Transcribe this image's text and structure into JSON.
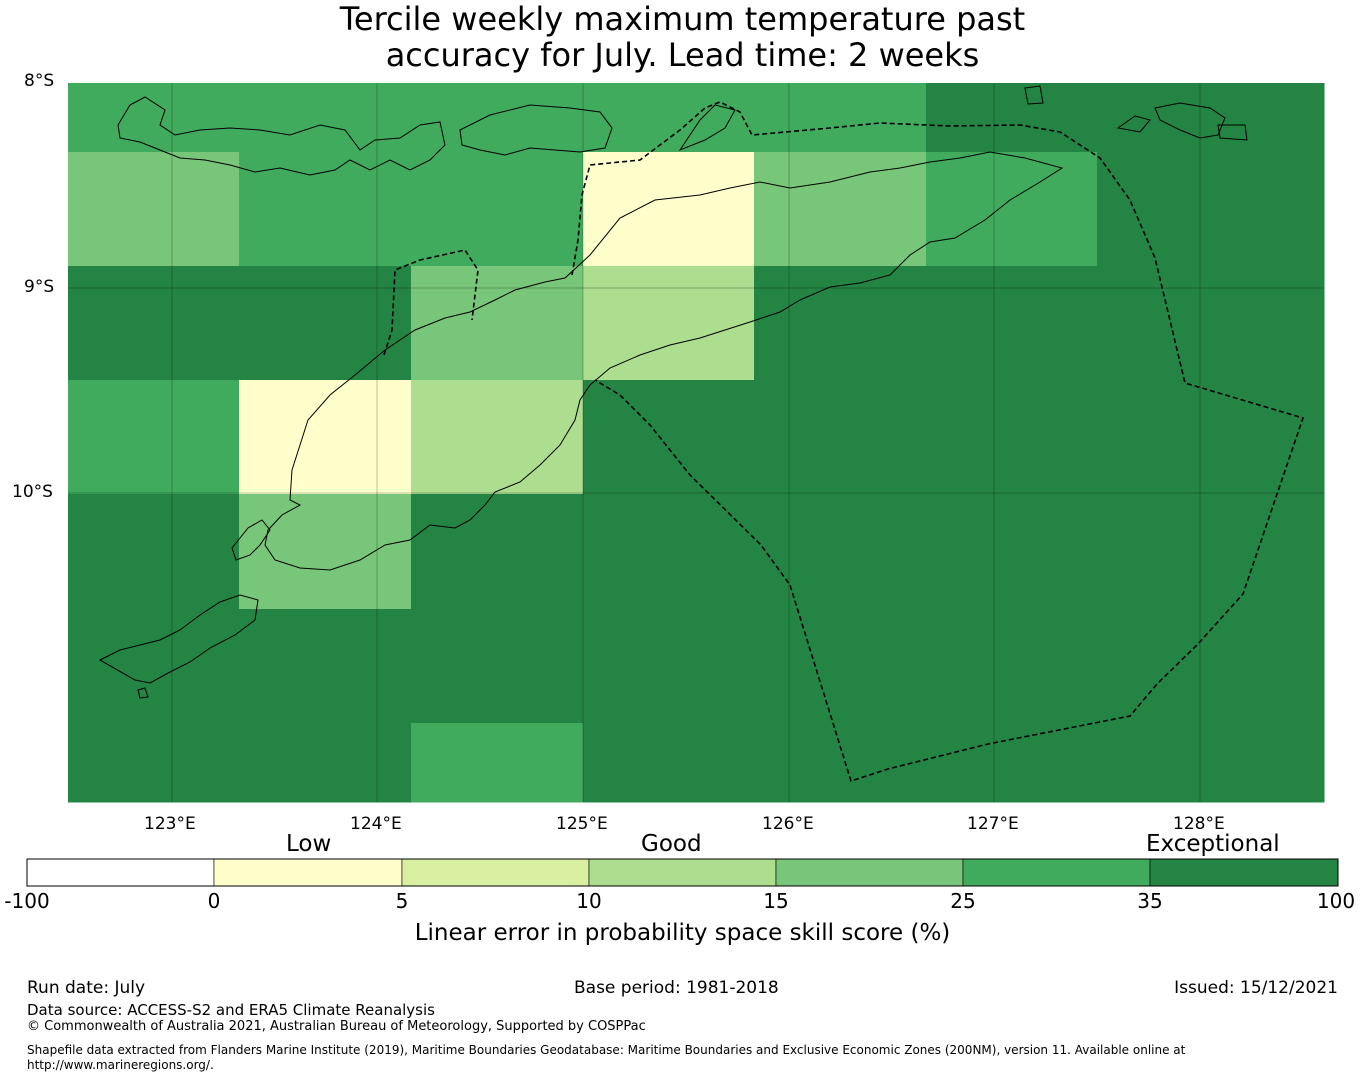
{
  "title_line1": "Tercile weekly maximum temperature past",
  "title_line2": "accuracy for July. Lead time: 2 weeks",
  "lat_labels": [
    "8°S",
    "9°S",
    "10°S"
  ],
  "lon_labels": [
    "123°E",
    "124°E",
    "125°E",
    "126°E",
    "127°E",
    "128°E"
  ],
  "colorbar": {
    "categories": [
      "Low",
      "Good",
      "Exceptional"
    ],
    "ticks": [
      "-100",
      "0",
      "5",
      "10",
      "15",
      "25",
      "35",
      "100"
    ],
    "colors": [
      "#ffffff",
      "#ffffcc",
      "#d9f0a3",
      "#addd8e",
      "#78c679",
      "#41ab5d",
      "#238443"
    ],
    "label": "Linear error in probability space skill score (%)"
  },
  "grid_cells": [
    [
      "#41ab5d",
      "#41ab5d",
      "#41ab5d",
      "#41ab5d",
      "#41ab5d",
      "#238443",
      "#238443"
    ],
    [
      "#78c679",
      "#41ab5d",
      "#41ab5d",
      "#ffffcc",
      "#78c679",
      "#41ab5d",
      "#238443"
    ],
    [
      "#238443",
      "#238443",
      "#78c679",
      "#addd8e",
      "#238443",
      "#238443",
      "#238443"
    ],
    [
      "#41ab5d",
      "#ffffcc",
      "#addd8e",
      "#238443",
      "#238443",
      "#238443",
      "#238443"
    ],
    [
      "#238443",
      "#78c679",
      "#238443",
      "#238443",
      "#238443",
      "#238443",
      "#238443"
    ],
    [
      "#238443",
      "#238443",
      "#238443",
      "#238443",
      "#238443",
      "#238443",
      "#238443"
    ],
    [
      "#238443",
      "#238443",
      "#41ab5d",
      "#238443",
      "#238443",
      "#238443",
      "#238443"
    ]
  ],
  "footer": {
    "run_date": "Run date: July",
    "base_period": "Base period: 1981-2018",
    "issued": "Issued: 15/12/2021",
    "data_source": "Data source: ACCESS-S2 and ERA5 Climate Reanalysis",
    "copyright": "© Commonwealth of Australia 2021, Australian Bureau of Meteorology, Supported by COSPPac",
    "shapefile_line1": "Shapefile data extracted from Flanders Marine Institute (2019), Maritime Boundaries Geodatabase: Maritime Boundaries and Exclusive Economic Zones (200NM), version 11. Available online at",
    "shapefile_line2": "http://www.marineregions.org/."
  }
}
